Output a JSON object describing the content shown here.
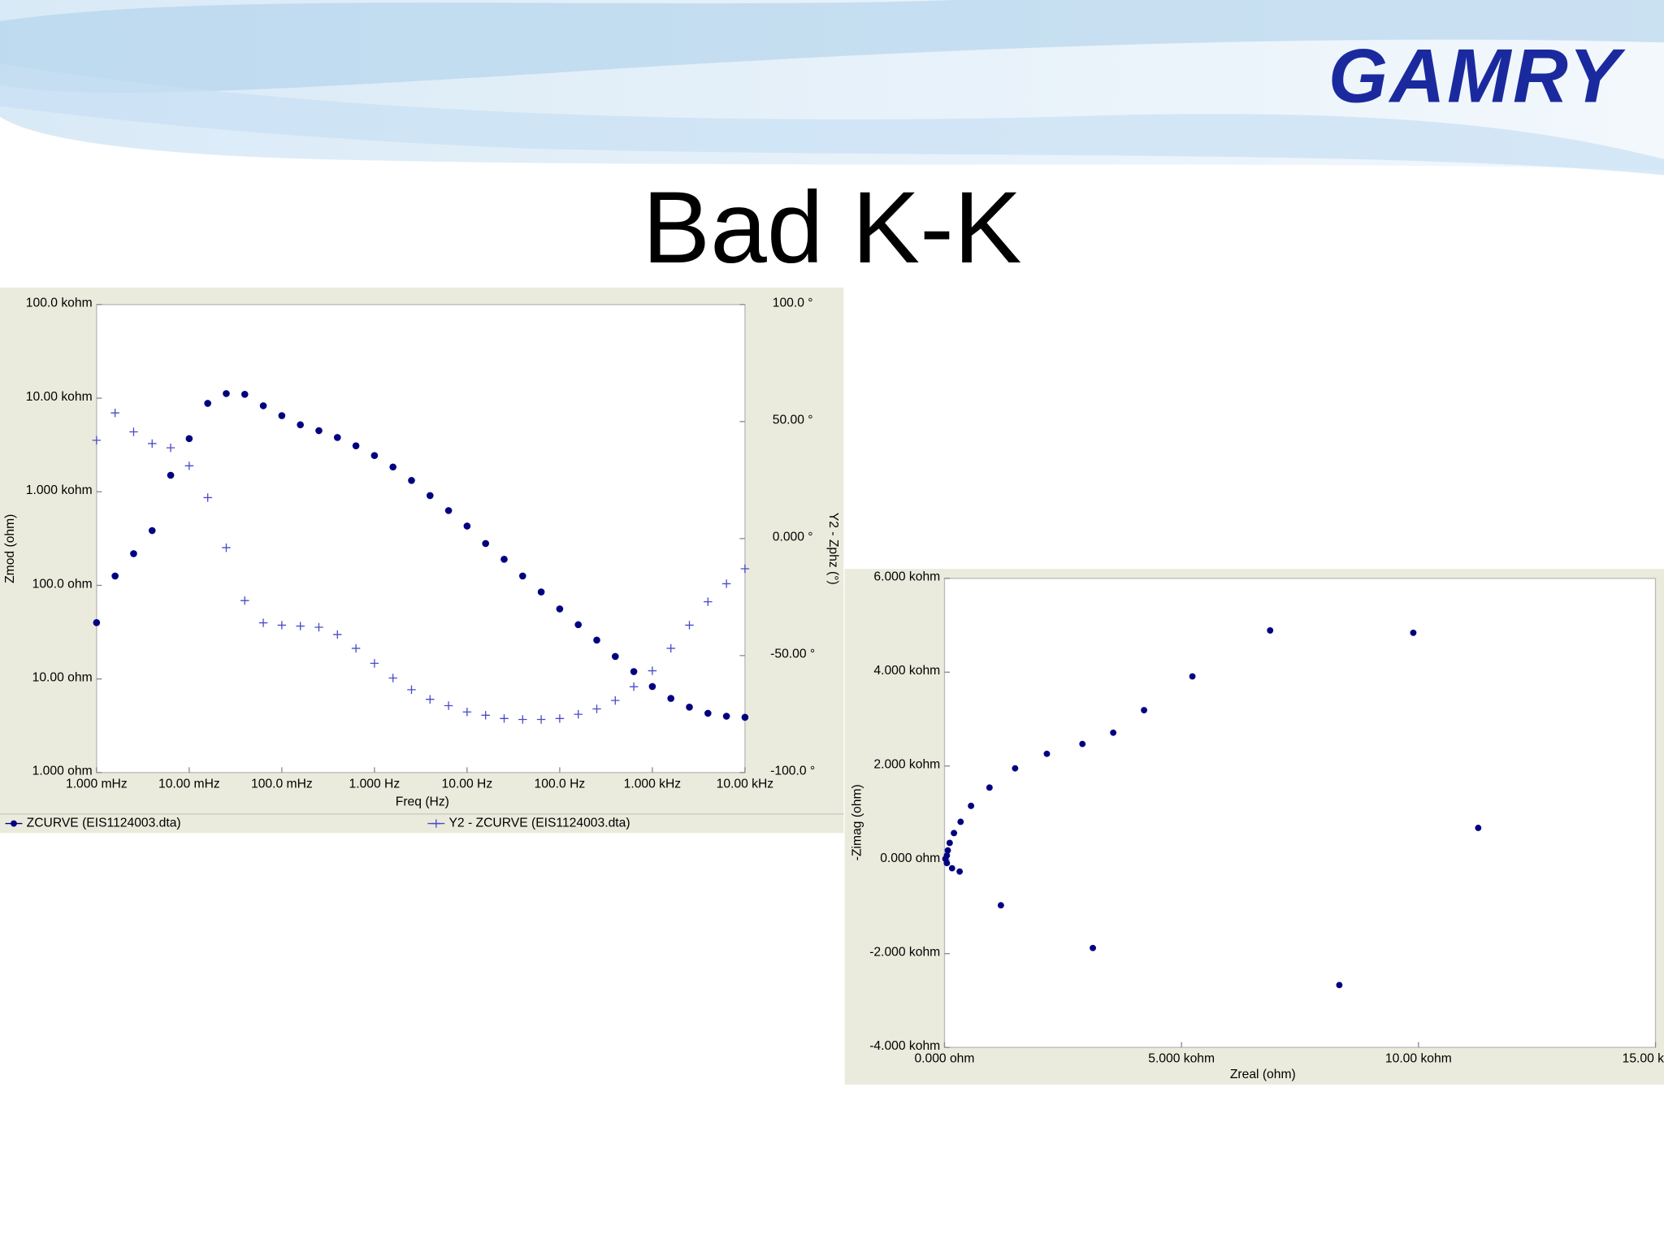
{
  "slide": {
    "title": "Bad K-K",
    "logo": "GAMRY"
  },
  "chart_data": [
    {
      "type": "scatter",
      "x_label": "Freq (Hz)",
      "y_label": "Zmod (ohm)",
      "y2_label": "Y2 - Zphz (°)",
      "xscale": "log",
      "yscale": "log",
      "grid": false,
      "legend": "bottom",
      "xlim": [
        0.001,
        10000
      ],
      "ylim": [
        1,
        100000
      ],
      "y2lim": [
        -100,
        100
      ],
      "xticks": [
        {
          "value": 0.001,
          "label": "1.000 mHz"
        },
        {
          "value": 0.01,
          "label": "10.00 mHz"
        },
        {
          "value": 0.1,
          "label": "100.0 mHz"
        },
        {
          "value": 1,
          "label": "1.000 Hz"
        },
        {
          "value": 10,
          "label": "10.00 Hz"
        },
        {
          "value": 100,
          "label": "100.0 Hz"
        },
        {
          "value": 1000,
          "label": "1.000 kHz"
        },
        {
          "value": 10000,
          "label": "10.00 kHz"
        }
      ],
      "yticks": [
        {
          "value": 1,
          "label": "1.000 ohm"
        },
        {
          "value": 10,
          "label": "10.00 ohm"
        },
        {
          "value": 100,
          "label": "100.0 ohm"
        },
        {
          "value": 1000,
          "label": "1.000 kohm"
        },
        {
          "value": 10000,
          "label": "10.00 kohm"
        },
        {
          "value": 100000,
          "label": "100.0 kohm"
        }
      ],
      "y2ticks": [
        {
          "value": -100,
          "label": "-100.0 °"
        },
        {
          "value": -50,
          "label": "-50.00 °"
        },
        {
          "value": 0,
          "label": "0.000 °"
        },
        {
          "value": 50,
          "label": "50.00 °"
        },
        {
          "value": 100,
          "label": "100.0 °"
        }
      ],
      "x": [
        0.001,
        0.001585,
        0.002512,
        0.003981,
        0.00631,
        0.01,
        0.01585,
        0.02512,
        0.03981,
        0.0631,
        0.1,
        0.1585,
        0.2512,
        0.3981,
        0.631,
        1,
        1.585,
        2.512,
        3.981,
        6.31,
        10,
        15.85,
        25.12,
        39.81,
        63.1,
        100,
        158.5,
        251.2,
        398.1,
        631,
        1000,
        1585,
        2512,
        3981,
        6310,
        10000
      ],
      "series": [
        {
          "name": "ZCURVE (EIS1124003.dta)",
          "color": "#000080",
          "marker": "circle",
          "values": [
            40,
            126,
            218,
            385,
            1500,
            3700,
            8800,
            11200,
            11000,
            8300,
            6500,
            5200,
            4500,
            3800,
            3100,
            2440,
            1840,
            1320,
            910,
            630,
            430,
            280,
            190,
            126,
            85,
            56,
            38,
            26,
            17.4,
            12,
            8.3,
            6.2,
            5.0,
            4.3,
            4.0,
            3.9
          ]
        },
        {
          "name": "Y2 - ZCURVE (EIS1124003.dta)",
          "color": "#4a4ac8",
          "marker": "plus",
          "axis": "y2",
          "values": [
            42,
            53.7,
            45.6,
            40.6,
            38.8,
            31.1,
            17.5,
            -3.9,
            -26.5,
            -36,
            -37,
            -37.4,
            -37.9,
            -41,
            -46.9,
            -53.3,
            -59.6,
            -64.6,
            -68.7,
            -71.4,
            -74.1,
            -75.5,
            -76.9,
            -77.3,
            -77.3,
            -76.9,
            -75.1,
            -72.8,
            -69.2,
            -63.3,
            -56.5,
            -46.9,
            -37,
            -27,
            -19.3,
            -12.9
          ]
        }
      ]
    },
    {
      "type": "scatter",
      "x_label": "Zreal (ohm)",
      "y_label": "-Zimag (ohm)",
      "grid": false,
      "xlim": [
        0,
        15000
      ],
      "ylim": [
        -4000,
        6000
      ],
      "xticks": [
        {
          "value": 0,
          "label": "0.000 ohm"
        },
        {
          "value": 5000,
          "label": "5.000 kohm"
        },
        {
          "value": 10000,
          "label": "10.00 kohm"
        },
        {
          "value": 15000,
          "label": "15.00 kohm"
        }
      ],
      "yticks": [
        {
          "value": -4000,
          "label": "-4.000 kohm"
        },
        {
          "value": -2000,
          "label": "-2.000 kohm"
        },
        {
          "value": 0,
          "label": "0.000 ohm"
        },
        {
          "value": 2000,
          "label": "2.000 kohm"
        },
        {
          "value": 4000,
          "label": "4.000 kohm"
        },
        {
          "value": 6000,
          "label": "6.000 kohm"
        }
      ],
      "x": [
        9890,
        6870,
        5230,
        4210,
        3560,
        2910,
        2160,
        1490,
        950,
        560,
        340,
        200,
        110,
        70,
        50,
        20,
        50,
        160,
        320,
        1190,
        3130,
        8330,
        11260
      ],
      "series": [
        {
          "color": "#000080",
          "marker": "circle",
          "values": [
            4840,
            4890,
            3910,
            3190,
            2710,
            2470,
            2260,
            1950,
            1540,
            1150,
            810,
            570,
            360,
            200,
            90,
            20,
            -70,
            -180,
            -250,
            -970,
            -1880,
            -2670,
            680
          ]
        }
      ]
    }
  ]
}
